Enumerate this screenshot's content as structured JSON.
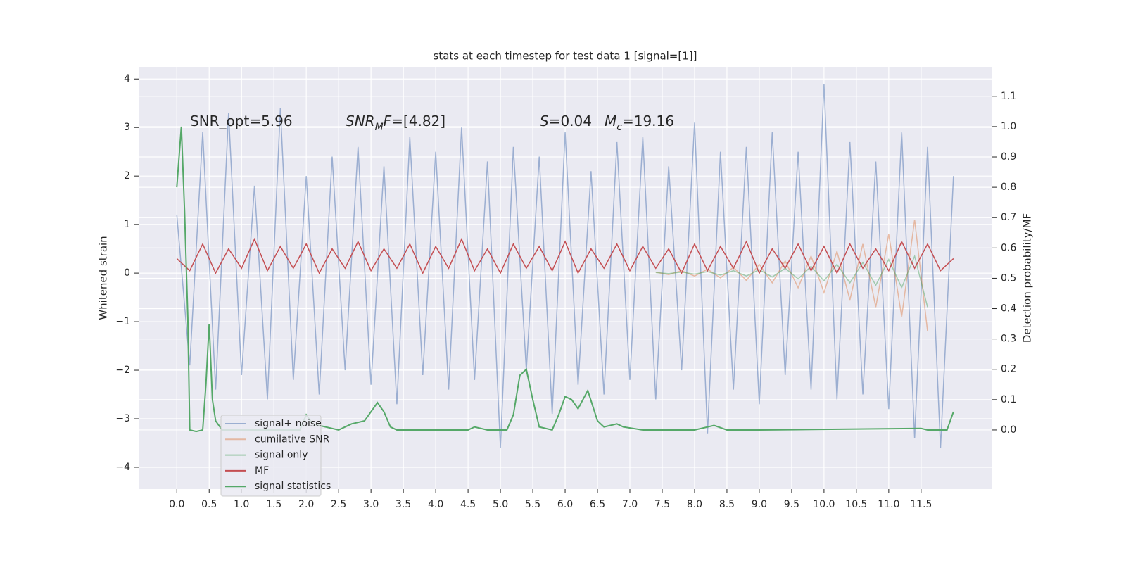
{
  "chart_data": {
    "type": "line",
    "title": "stats at each timestep for test data 1 [signal=[1]]",
    "ylabel": "Whitened strain",
    "y2label": "Detection probability/MF",
    "xlim": [
      -0.59,
      12.6
    ],
    "ylim": [
      -4.45,
      4.25
    ],
    "y2lim": [
      -0.195,
      1.197
    ],
    "grid": true,
    "legend": "lower left",
    "xticks": [
      {
        "value": 0,
        "label": "0.0"
      },
      {
        "value": 0.5,
        "label": "0.5"
      },
      {
        "value": 1,
        "label": "1.0"
      },
      {
        "value": 1.5,
        "label": "1.5"
      },
      {
        "value": 2,
        "label": "2.0"
      },
      {
        "value": 2.5,
        "label": "2.5"
      },
      {
        "value": 3,
        "label": "3.0"
      },
      {
        "value": 3.5,
        "label": "3.5"
      },
      {
        "value": 4,
        "label": "4.0"
      },
      {
        "value": 4.5,
        "label": "4.5"
      },
      {
        "value": 5,
        "label": "5.0"
      },
      {
        "value": 5.5,
        "label": "5.5"
      },
      {
        "value": 6,
        "label": "6.0"
      },
      {
        "value": 6.5,
        "label": "6.5"
      },
      {
        "value": 7,
        "label": "7.0"
      },
      {
        "value": 7.5,
        "label": "7.5"
      },
      {
        "value": 8,
        "label": "8.0"
      },
      {
        "value": 8.5,
        "label": "8.5"
      },
      {
        "value": 9,
        "label": "9.0"
      },
      {
        "value": 9.5,
        "label": "9.5"
      },
      {
        "value": 10,
        "label": "10.0"
      },
      {
        "value": 10.5,
        "label": "10.5"
      },
      {
        "value": 11,
        "label": "11.0"
      },
      {
        "value": 11.5,
        "label": "11.5"
      }
    ],
    "yticks": [
      {
        "value": -4,
        "label": "−4"
      },
      {
        "value": -3,
        "label": "−3"
      },
      {
        "value": -2,
        "label": "−2"
      },
      {
        "value": -1,
        "label": "−1"
      },
      0,
      1,
      2,
      3,
      4
    ],
    "y2ticks": [
      {
        "value": 0,
        "label": "0.0"
      },
      {
        "value": 0.1,
        "label": "0.1"
      },
      {
        "value": 0.2,
        "label": "0.2"
      },
      {
        "value": 0.3,
        "label": "0.3"
      },
      {
        "value": 0.4,
        "label": "0.4"
      },
      {
        "value": 0.5,
        "label": "0.5"
      },
      {
        "value": 0.6,
        "label": "0.6"
      },
      {
        "value": 0.7,
        "label": "0.7"
      },
      {
        "value": 0.8,
        "label": "0.8"
      },
      {
        "value": 0.9,
        "label": "0.9"
      },
      {
        "value": 1,
        "label": "1.0"
      },
      {
        "value": 1.1,
        "label": "1.1"
      }
    ],
    "annotations": [
      [
        {
          "text": "SNR_opt=5.96"
        }
      ],
      [
        {
          "text": "SNR",
          "italic": true
        },
        {
          "text": "M",
          "italic": true,
          "sub": true
        },
        {
          "text": "F",
          "italic": true
        },
        {
          "text": "=[4.82]"
        }
      ],
      [
        {
          "text": "S",
          "italic": true
        },
        {
          "text": "=0.04"
        }
      ],
      [
        {
          "text": "M",
          "italic": true
        },
        {
          "text": "c",
          "italic": true,
          "sub": true
        },
        {
          "text": "=19.16"
        }
      ]
    ],
    "series": [
      {
        "name": "signal+ noise",
        "color": "#4c72b0",
        "opacity": 0.5,
        "x": [
          0,
          0.2,
          0.4,
          0.6,
          0.8,
          1,
          1.2,
          1.4,
          1.6,
          1.8,
          2,
          2.2,
          2.4,
          2.6,
          2.8,
          3,
          3.2,
          3.4,
          3.6,
          3.8,
          4,
          4.2,
          4.4,
          4.6,
          4.8,
          5,
          5.2,
          5.4,
          5.6,
          5.8,
          6,
          6.2,
          6.4,
          6.6,
          6.8,
          7,
          7.2,
          7.4,
          7.6,
          7.8,
          8,
          8.2,
          8.4,
          8.6,
          8.8,
          9,
          9.2,
          9.4,
          9.6,
          9.8,
          10,
          10.2,
          10.4,
          10.6,
          10.8,
          11,
          11.2,
          11.4,
          11.6,
          11.8,
          12
        ],
        "values": [
          1.2,
          -1.9,
          2.9,
          -2.4,
          3.3,
          -2.1,
          1.8,
          -2.6,
          3.4,
          -2.2,
          2.0,
          -2.5,
          2.4,
          -2.0,
          2.6,
          -2.3,
          2.2,
          -2.7,
          2.8,
          -2.1,
          2.5,
          -2.4,
          3.0,
          -2.2,
          2.3,
          -3.6,
          2.6,
          -2.0,
          2.4,
          -2.9,
          2.9,
          -2.3,
          2.1,
          -2.5,
          2.7,
          -2.2,
          2.8,
          -2.6,
          2.2,
          -2.0,
          3.1,
          -3.3,
          2.5,
          -2.4,
          2.6,
          -2.7,
          2.9,
          -2.1,
          2.5,
          -2.4,
          3.9,
          -2.6,
          2.7,
          -2.5,
          2.3,
          -2.8,
          2.9,
          -3.4,
          2.6,
          -3.6,
          2.0
        ]
      },
      {
        "name": "cumilative SNR",
        "color": "#dd8452",
        "opacity": 0.5,
        "x": [
          7.4,
          7.6,
          7.8,
          8,
          8.2,
          8.4,
          8.6,
          8.8,
          9,
          9.2,
          9.4,
          9.6,
          9.8,
          10,
          10.2,
          10.4,
          10.6,
          10.8,
          11,
          11.2,
          11.4,
          11.6
        ],
        "values": [
          0.02,
          -0.03,
          0.05,
          -0.06,
          0.08,
          -0.1,
          0.12,
          -0.15,
          0.18,
          -0.2,
          0.25,
          -0.3,
          0.35,
          -0.4,
          0.45,
          -0.55,
          0.6,
          -0.7,
          0.8,
          -0.9,
          1.1,
          -1.2
        ]
      },
      {
        "name": "signal only",
        "color": "#55a868",
        "opacity": 0.5,
        "x": [
          7.4,
          7.6,
          7.8,
          8,
          8.2,
          8.4,
          8.6,
          8.8,
          9,
          9.2,
          9.4,
          9.6,
          9.8,
          10,
          10.2,
          10.4,
          10.6,
          10.8,
          11,
          11.2,
          11.4,
          11.6
        ],
        "values": [
          0.01,
          -0.01,
          0.02,
          -0.02,
          0.03,
          -0.04,
          0.05,
          -0.06,
          0.07,
          -0.08,
          0.1,
          -0.12,
          0.14,
          -0.16,
          0.18,
          -0.2,
          0.22,
          -0.25,
          0.28,
          -0.3,
          0.35,
          -0.7
        ]
      },
      {
        "name": "MF",
        "color": "#c44e52",
        "opacity": 1,
        "x": [
          0,
          0.2,
          0.4,
          0.6,
          0.8,
          1,
          1.2,
          1.4,
          1.6,
          1.8,
          2,
          2.2,
          2.4,
          2.6,
          2.8,
          3,
          3.2,
          3.4,
          3.6,
          3.8,
          4,
          4.2,
          4.4,
          4.6,
          4.8,
          5,
          5.2,
          5.4,
          5.6,
          5.8,
          6,
          6.2,
          6.4,
          6.6,
          6.8,
          7,
          7.2,
          7.4,
          7.6,
          7.8,
          8,
          8.2,
          8.4,
          8.6,
          8.8,
          9,
          9.2,
          9.4,
          9.6,
          9.8,
          10,
          10.2,
          10.4,
          10.6,
          10.8,
          11,
          11.2,
          11.4,
          11.6,
          11.8,
          12
        ],
        "values": [
          0.3,
          0.05,
          0.6,
          0.0,
          0.5,
          0.1,
          0.7,
          0.05,
          0.55,
          0.1,
          0.6,
          0.0,
          0.5,
          0.1,
          0.65,
          0.05,
          0.5,
          0.1,
          0.6,
          0.0,
          0.55,
          0.1,
          0.7,
          0.05,
          0.5,
          0.0,
          0.6,
          0.1,
          0.55,
          0.05,
          0.65,
          0.0,
          0.5,
          0.1,
          0.6,
          0.05,
          0.55,
          0.1,
          0.5,
          0.0,
          0.6,
          0.05,
          0.55,
          0.1,
          0.65,
          0.0,
          0.5,
          0.1,
          0.6,
          0.05,
          0.55,
          0.0,
          0.6,
          0.1,
          0.5,
          0.05,
          0.65,
          0.1,
          0.6,
          0.05,
          0.3
        ]
      },
      {
        "name": "signal statistics",
        "color": "#55a868",
        "opacity": 1,
        "axis": "y2",
        "x": [
          0,
          0.07,
          0.12,
          0.17,
          0.2,
          0.3,
          0.4,
          0.45,
          0.5,
          0.55,
          0.6,
          0.7,
          1.0,
          1.5,
          1.9,
          2.0,
          2.1,
          2.5,
          2.7,
          2.9,
          3.0,
          3.1,
          3.2,
          3.3,
          3.4,
          4.0,
          4.5,
          4.6,
          4.8,
          5.1,
          5.2,
          5.3,
          5.4,
          5.5,
          5.6,
          5.8,
          5.9,
          6.0,
          6.1,
          6.2,
          6.35,
          6.5,
          6.6,
          6.8,
          6.9,
          7.2,
          8.0,
          8.3,
          8.5,
          9.0,
          11.5,
          11.6,
          11.9,
          12.0
        ],
        "values": [
          0.8,
          1.0,
          0.72,
          0.37,
          0.0,
          -0.005,
          0.0,
          0.15,
          0.35,
          0.1,
          0.03,
          0.0,
          0.0,
          0.0,
          0.0,
          0.05,
          0.02,
          0.0,
          0.02,
          0.03,
          0.06,
          0.09,
          0.06,
          0.01,
          0.0,
          0.0,
          0.0,
          0.01,
          0.0,
          0.0,
          0.05,
          0.18,
          0.2,
          0.1,
          0.01,
          0.0,
          0.05,
          0.11,
          0.1,
          0.07,
          0.13,
          0.03,
          0.01,
          0.02,
          0.01,
          0.0,
          0.0,
          0.015,
          0.0,
          0.0,
          0.005,
          0.0,
          0.0,
          0.06
        ]
      }
    ]
  }
}
